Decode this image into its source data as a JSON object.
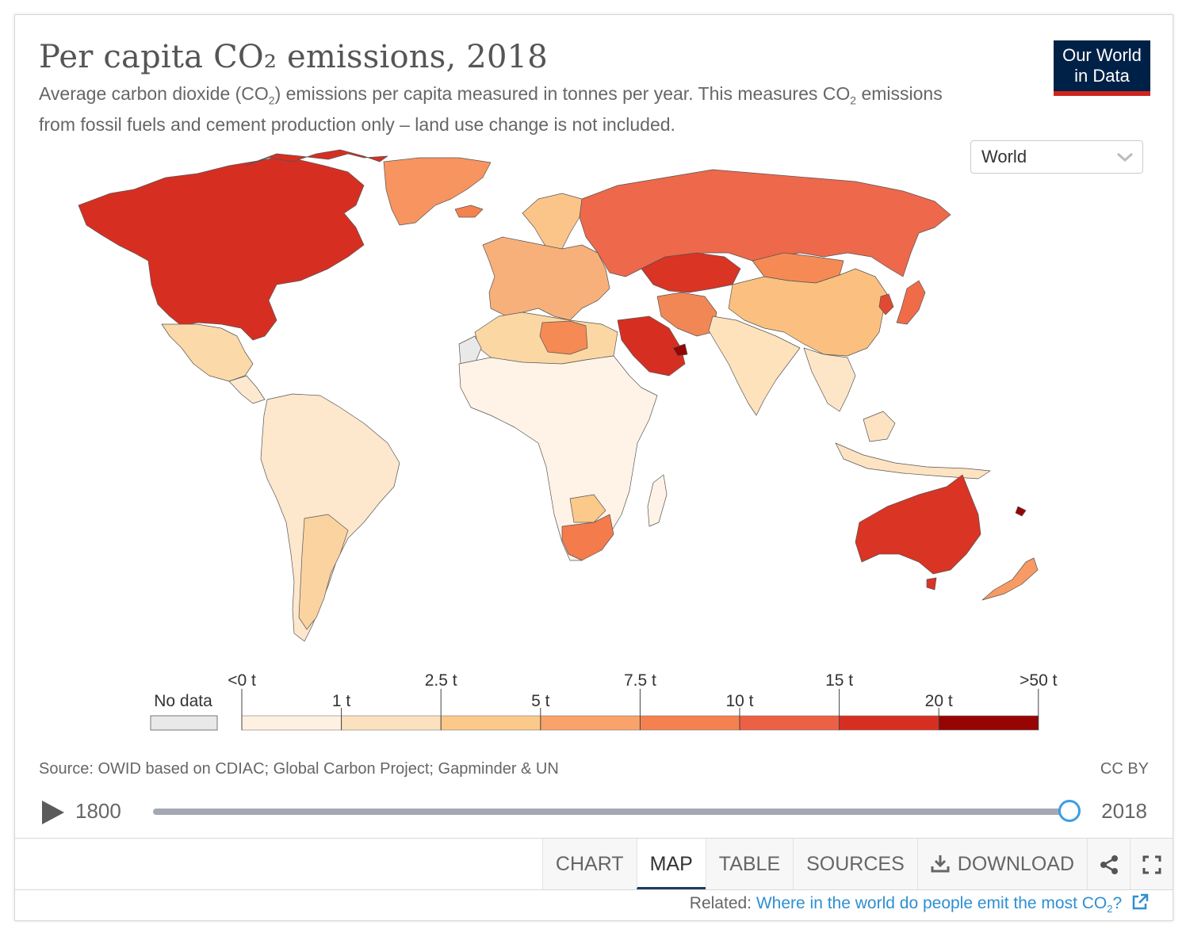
{
  "header": {
    "title": "Per capita CO₂ emissions, 2018",
    "subtitle_part1": "Average carbon dioxide (CO",
    "subtitle_sub1": "2",
    "subtitle_part2": ") emissions per capita measured in tonnes per year. This measures CO",
    "subtitle_sub2": "2",
    "subtitle_part3": " emissions from fossil fuels and cement production only – land use change is not included.",
    "logo_line1": "Our World",
    "logo_line2": "in Data"
  },
  "region_select": {
    "value": "World",
    "icon": "chevron-down-icon"
  },
  "legend": {
    "no_data_label": "No data",
    "no_data_color": "#e9e9e9",
    "top_labels": [
      "<0 t",
      "2.5 t",
      "7.5 t",
      "15 t",
      ">50 t"
    ],
    "bottom_labels": [
      "1 t",
      "5 t",
      "10 t",
      "20 t"
    ],
    "bins": [
      {
        "color": "#fef1e2"
      },
      {
        "color": "#fce1be"
      },
      {
        "color": "#fbc98a"
      },
      {
        "color": "#f9a36a"
      },
      {
        "color": "#f5814f"
      },
      {
        "color": "#ec6046"
      },
      {
        "color": "#d62f22"
      },
      {
        "color": "#960404"
      }
    ]
  },
  "map_colors": {
    "north_america": "#d62f22",
    "mexico": "#fbd9a8",
    "central_america": "#fde9cf",
    "south_america": "#fde7cd",
    "argentina": "#fbd3a0",
    "chile": "#fbd3a0",
    "greenland": "#f79460",
    "iceland": "#f5814f",
    "europe": "#f8b07a",
    "scandinavia": "#fbc58a",
    "russia": "#ee684b",
    "kazakhstan": "#d93424",
    "saudi_arabia": "#d62f22",
    "iran": "#f28756",
    "china": "#fbc07f",
    "mongolia": "#f58a54",
    "india": "#fde2bc",
    "southeast_asia": "#fde6c7",
    "japan": "#f06c49",
    "korea": "#e04a32",
    "africa": "#fef3e6",
    "north_africa": "#fbd7a3",
    "libya": "#f58a54",
    "south_africa": "#f37b4c",
    "botswana": "#fbc98a",
    "australia": "#d93424",
    "new_zealand": "#f79a63",
    "indonesia": "#fde3c1",
    "new_caledonia": "#960404",
    "uae": "#960404",
    "western_sahara": "#e9e9e9"
  },
  "source": "Source: OWID based on CDIAC; Global Carbon Project; Gapminder & UN",
  "license": "CC BY",
  "timeline": {
    "start_year": "1800",
    "end_year": "2018",
    "progress": 1.0
  },
  "tabs": [
    "CHART",
    "MAP",
    "TABLE",
    "SOURCES",
    "DOWNLOAD"
  ],
  "active_tab": "MAP",
  "related": {
    "label": "Related:",
    "link_part1": "Where in the world do people emit the most CO",
    "link_sub": "2",
    "link_part2": "?"
  }
}
